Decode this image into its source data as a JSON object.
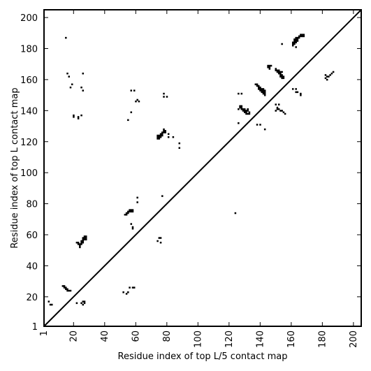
{
  "chart_data": {
    "type": "scatter",
    "title": "",
    "xlabel": "Residue index of top L/5 contact map",
    "ylabel": "Residue index of top L contact map",
    "xlim": [
      1,
      205
    ],
    "ylim": [
      1,
      205
    ],
    "x_ticks": [
      1,
      20,
      40,
      60,
      80,
      100,
      120,
      140,
      160,
      180,
      200
    ],
    "y_ticks": [
      1,
      20,
      40,
      60,
      80,
      100,
      120,
      140,
      160,
      180,
      200
    ],
    "x_tick_labels": [
      "1",
      "20",
      "40",
      "60",
      "80",
      "100",
      "120",
      "140",
      "160",
      "180",
      "200"
    ],
    "y_tick_labels": [
      "1",
      "20",
      "40",
      "60",
      "80",
      "100",
      "120",
      "140",
      "160",
      "180",
      "200"
    ],
    "diagonal": true,
    "grid": false,
    "marker_color": "#000000",
    "series": [
      {
        "points_upper_left": [
          [
            4,
            17
          ],
          [
            5,
            15
          ],
          [
            6,
            15
          ],
          [
            13,
            27
          ],
          [
            14,
            27
          ],
          [
            14,
            26
          ],
          [
            15,
            26
          ],
          [
            15,
            25
          ],
          [
            16,
            25
          ],
          [
            16,
            24
          ],
          [
            17,
            24
          ],
          [
            18,
            24
          ],
          [
            15,
            187
          ],
          [
            16,
            164
          ],
          [
            17,
            162
          ],
          [
            18,
            155
          ],
          [
            19,
            157
          ],
          [
            20,
            137
          ],
          [
            20,
            136
          ],
          [
            23,
            136
          ],
          [
            23,
            135
          ],
          [
            25,
            137
          ],
          [
            25,
            155
          ],
          [
            26,
            153
          ],
          [
            26,
            164
          ],
          [
            22,
            55
          ],
          [
            23,
            55
          ],
          [
            23,
            54
          ],
          [
            24,
            54
          ],
          [
            24,
            53
          ],
          [
            24,
            52
          ],
          [
            25,
            55
          ],
          [
            25,
            56
          ],
          [
            26,
            56
          ],
          [
            26,
            57
          ],
          [
            26,
            58
          ],
          [
            27,
            58
          ],
          [
            27,
            59
          ],
          [
            28,
            59
          ],
          [
            28,
            58
          ],
          [
            27,
            57
          ],
          [
            26,
            55
          ],
          [
            25,
            54
          ],
          [
            28,
            57
          ],
          [
            53,
            73
          ],
          [
            54,
            73
          ],
          [
            54,
            74
          ],
          [
            55,
            74
          ],
          [
            55,
            75
          ],
          [
            56,
            75
          ],
          [
            56,
            76
          ],
          [
            57,
            76
          ],
          [
            58,
            76
          ],
          [
            57,
            75
          ],
          [
            58,
            75
          ],
          [
            57,
            67
          ],
          [
            58,
            64
          ],
          [
            58,
            65
          ],
          [
            61,
            81
          ],
          [
            61,
            84
          ],
          [
            55,
            134
          ],
          [
            57,
            139
          ],
          [
            57,
            153
          ],
          [
            59,
            153
          ],
          [
            60,
            146
          ],
          [
            61,
            147
          ],
          [
            62,
            146
          ],
          [
            74,
            56
          ],
          [
            75,
            58
          ],
          [
            76,
            55
          ],
          [
            77,
            85
          ],
          [
            76,
            58
          ],
          [
            74,
            124
          ],
          [
            74,
            123
          ],
          [
            74,
            122
          ],
          [
            75,
            122
          ],
          [
            75,
            123
          ],
          [
            75,
            124
          ],
          [
            76,
            124
          ],
          [
            76,
            125
          ],
          [
            76,
            123
          ],
          [
            77,
            125
          ],
          [
            77,
            126
          ],
          [
            77,
            124
          ],
          [
            78,
            126
          ],
          [
            78,
            127
          ],
          [
            78,
            128
          ],
          [
            79,
            127
          ],
          [
            79,
            126
          ],
          [
            81,
            123
          ],
          [
            81,
            125
          ],
          [
            84,
            123
          ],
          [
            88,
            119
          ],
          [
            88,
            116
          ],
          [
            78,
            149
          ],
          [
            78,
            151
          ],
          [
            80,
            149
          ],
          [
            124,
            74
          ],
          [
            126,
            132
          ],
          [
            126,
            141
          ],
          [
            126,
            151
          ],
          [
            128,
            151
          ],
          [
            127,
            143
          ],
          [
            127,
            142
          ],
          [
            128,
            142
          ],
          [
            128,
            141
          ],
          [
            128,
            143
          ],
          [
            129,
            141
          ],
          [
            129,
            140
          ],
          [
            130,
            141
          ],
          [
            130,
            140
          ],
          [
            130,
            139
          ],
          [
            131,
            139
          ],
          [
            131,
            138
          ],
          [
            131,
            140
          ],
          [
            132,
            141
          ],
          [
            132,
            140
          ],
          [
            133,
            139
          ],
          [
            133,
            138
          ],
          [
            132,
            138
          ],
          [
            137,
            157
          ],
          [
            138,
            157
          ],
          [
            138,
            156
          ],
          [
            139,
            156
          ],
          [
            139,
            155
          ],
          [
            139,
            154
          ],
          [
            140,
            155
          ],
          [
            140,
            154
          ],
          [
            140,
            153
          ],
          [
            141,
            153
          ],
          [
            141,
            152
          ],
          [
            141,
            154
          ],
          [
            142,
            153
          ],
          [
            142,
            152
          ],
          [
            142,
            151
          ],
          [
            143,
            152
          ],
          [
            143,
            151
          ],
          [
            143,
            150
          ],
          [
            143,
            153
          ],
          [
            142,
            154
          ],
          [
            138,
            131
          ],
          [
            140,
            131
          ],
          [
            143,
            128
          ],
          [
            145,
            168
          ],
          [
            145,
            169
          ],
          [
            146,
            169
          ],
          [
            146,
            168
          ],
          [
            147,
            169
          ],
          [
            146,
            167
          ],
          [
            150,
            167
          ],
          [
            150,
            166
          ],
          [
            151,
            166
          ],
          [
            151,
            165
          ],
          [
            152,
            165
          ],
          [
            152,
            164
          ],
          [
            152,
            166
          ],
          [
            153,
            164
          ],
          [
            153,
            163
          ],
          [
            153,
            162
          ],
          [
            154,
            163
          ],
          [
            154,
            162
          ],
          [
            154,
            161
          ],
          [
            155,
            162
          ],
          [
            155,
            161
          ],
          [
            154,
            165
          ],
          [
            153,
            165
          ],
          [
            150,
            144
          ],
          [
            151,
            142
          ],
          [
            152,
            141
          ],
          [
            152,
            144
          ],
          [
            153,
            140
          ],
          [
            154,
            140
          ],
          [
            155,
            139
          ],
          [
            156,
            138
          ],
          [
            150,
            140
          ],
          [
            151,
            141
          ],
          [
            154,
            183
          ],
          [
            161,
            182
          ],
          [
            161,
            183
          ],
          [
            161,
            184
          ],
          [
            162,
            183
          ],
          [
            162,
            184
          ],
          [
            162,
            185
          ],
          [
            162,
            186
          ],
          [
            163,
            186
          ],
          [
            163,
            187
          ],
          [
            163,
            185
          ],
          [
            163,
            184
          ],
          [
            163,
            181
          ],
          [
            164,
            187
          ],
          [
            164,
            186
          ],
          [
            165,
            187
          ],
          [
            165,
            188
          ],
          [
            166,
            189
          ],
          [
            166,
            188
          ],
          [
            167,
            189
          ],
          [
            167,
            188
          ],
          [
            168,
            189
          ],
          [
            168,
            188
          ],
          [
            164,
            185
          ],
          [
            161,
            154
          ],
          [
            163,
            154
          ],
          [
            163,
            152
          ],
          [
            164,
            152
          ],
          [
            166,
            151
          ],
          [
            166,
            150
          ],
          [
            182,
            163
          ],
          [
            182,
            161
          ],
          [
            183,
            160
          ],
          [
            183,
            162
          ],
          [
            184,
            162
          ],
          [
            185,
            163
          ],
          [
            186,
            164
          ],
          [
            187,
            165
          ]
        ]
      },
      {
        "points_lower_right": [
          [
            22,
            16
          ],
          [
            25,
            16
          ],
          [
            26,
            15
          ],
          [
            26,
            17
          ],
          [
            27,
            16
          ],
          [
            27,
            17
          ],
          [
            52,
            23
          ],
          [
            54,
            22
          ],
          [
            55,
            23
          ],
          [
            56,
            26
          ],
          [
            58,
            26
          ],
          [
            59,
            26
          ]
        ]
      }
    ]
  },
  "axes": {
    "xlabel": "Residue index of top L/5 contact map",
    "ylabel": "Residue index of top L contact map"
  }
}
